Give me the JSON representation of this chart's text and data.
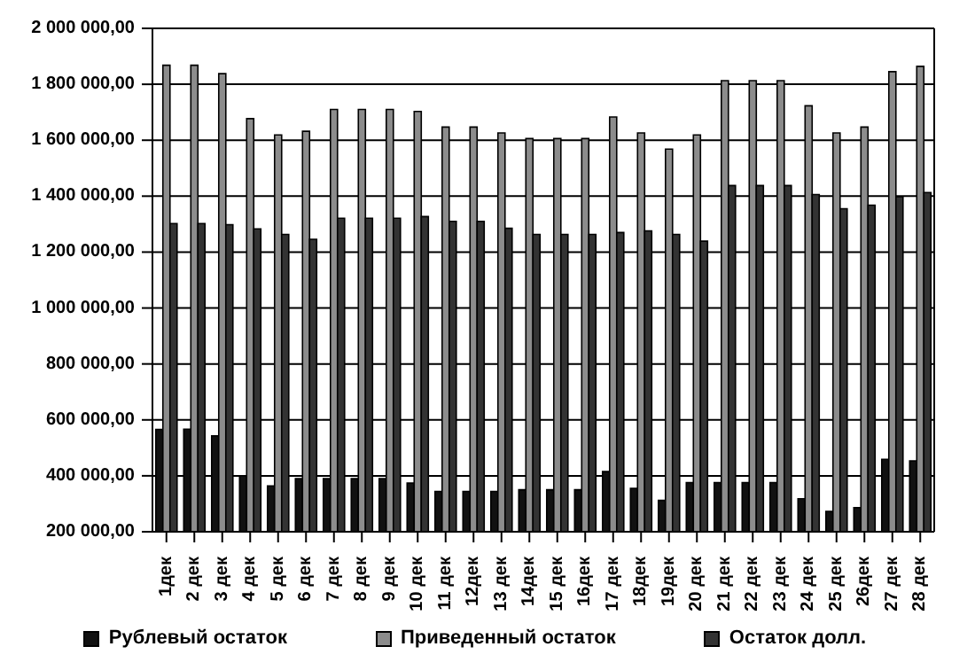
{
  "chart_data": {
    "type": "bar",
    "categories": [
      "1дек",
      "2 дек",
      "3 дек",
      "4 дек",
      "5 дек",
      "6 дек",
      "7 дек",
      "8 дек",
      "9 дек",
      "10 дек",
      "11 дек",
      "12дек",
      "13 дек",
      "14дек",
      "15 дек",
      "16дек",
      "17 дек",
      "18дек",
      "19дек",
      "20 дек",
      "21 дек",
      "22 дек",
      "23 дек",
      "24 дек",
      "25 дек",
      "26дек",
      "27 дек",
      "28 дек"
    ],
    "series": [
      {
        "name": "Рублевый остаток",
        "color": "#111111",
        "values": [
          566000,
          567000,
          543000,
          400000,
          364000,
          390000,
          390000,
          390000,
          390000,
          374000,
          344000,
          344000,
          344000,
          350000,
          350000,
          350000,
          415000,
          355000,
          312000,
          376000,
          376000,
          376000,
          376000,
          318000,
          273000,
          286000,
          459000,
          453000
        ]
      },
      {
        "name": "Приведенный остаток",
        "color": "#8c8c8c",
        "values": [
          1868000,
          1868000,
          1838000,
          1677000,
          1619000,
          1632000,
          1710000,
          1710000,
          1710000,
          1703000,
          1647000,
          1647000,
          1626000,
          1606000,
          1606000,
          1606000,
          1683000,
          1626000,
          1568000,
          1619000,
          1813000,
          1813000,
          1813000,
          1723000,
          1626000,
          1647000,
          1845000,
          1864000
        ]
      },
      {
        "name": "Остаток долл.",
        "color": "#333333",
        "values": [
          1302000,
          1302000,
          1298000,
          1283000,
          1263000,
          1246000,
          1321000,
          1321000,
          1321000,
          1327000,
          1310000,
          1310000,
          1285000,
          1263000,
          1263000,
          1263000,
          1270000,
          1276000,
          1263000,
          1239000,
          1438000,
          1438000,
          1438000,
          1406000,
          1355000,
          1368000,
          1398000,
          1413000
        ]
      }
    ],
    "ylim": [
      200000,
      2000000
    ],
    "yticks": [
      {
        "value": 200000,
        "label": "200 000,00"
      },
      {
        "value": 400000,
        "label": "400 000,00"
      },
      {
        "value": 600000,
        "label": "600 000,00"
      },
      {
        "value": 800000,
        "label": "800 000,00"
      },
      {
        "value": 1000000,
        "label": "1 000 000,00"
      },
      {
        "value": 1200000,
        "label": "1 200 000,00"
      },
      {
        "value": 1400000,
        "label": "1 400 000,00"
      },
      {
        "value": 1600000,
        "label": "1 600 000,00"
      },
      {
        "value": 1800000,
        "label": "1 800 000,00"
      },
      {
        "value": 2000000,
        "label": "2 000 000,00"
      }
    ],
    "grid": "y",
    "legend": "bottom"
  }
}
